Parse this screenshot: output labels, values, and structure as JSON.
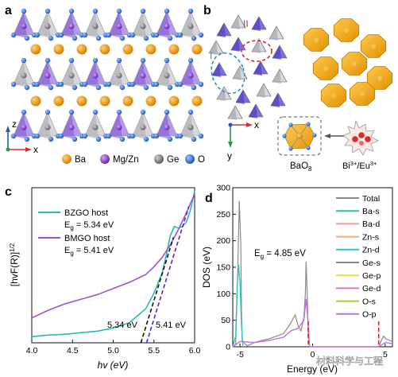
{
  "figure": {
    "panel_letters": [
      "a",
      "b",
      "c",
      "d"
    ],
    "panel_a": {
      "axes": {
        "z": "z",
        "x": "x"
      },
      "legend": [
        {
          "symbol": "ba-sphere",
          "label": "Ba",
          "color": "#f0a020"
        },
        {
          "symbol": "mgzn-sphere",
          "label": "Mg/Zn",
          "color": "#8a40d0"
        },
        {
          "symbol": "ge-sphere",
          "label": "Ge",
          "color": "#8a8a8a"
        },
        {
          "symbol": "o-sphere",
          "label": "O",
          "color": "#2a6fd6"
        }
      ]
    },
    "panel_b": {
      "sites": {
        "I": "I",
        "II": "II"
      },
      "axes": {
        "x": "x",
        "y": "y"
      },
      "polyhedron_label": "BaO",
      "polyhedron_sub": "8",
      "dopant_label": "Bi",
      "dopant_sup1": "3+",
      "dopant_mid": "/Eu",
      "dopant_sup2": "3+"
    },
    "watermark": "材料科学与工程"
  },
  "chart_data": [
    {
      "panel": "c",
      "type": "line",
      "xlabel": "hv (eV)",
      "ylabel": "[hvF(R)]",
      "ylabel_sup": "1/2",
      "xlim": [
        4.0,
        6.0
      ],
      "xticks": [
        "4.0",
        "4.5",
        "5.0",
        "5.5",
        "6.0"
      ],
      "colors": {
        "BZGO": "#2ab8b0",
        "BMGO": "#a050d8"
      },
      "legend": [
        {
          "name": "BZGO host",
          "eg_prefix": "E",
          "eg_sub": "g",
          "eg_value": " = 5.34 eV"
        },
        {
          "name": "BMGO host",
          "eg_prefix": "E",
          "eg_sub": "g",
          "eg_value": " = 5.41 eV"
        }
      ],
      "series": [
        {
          "name": "BZGO host",
          "x": [
            4.0,
            4.2,
            4.4,
            4.6,
            4.8,
            5.0,
            5.2,
            5.4,
            5.5,
            5.6,
            5.65,
            5.7,
            5.75,
            5.8,
            5.85,
            5.9,
            5.95,
            6.0
          ],
          "y": [
            0.04,
            0.05,
            0.055,
            0.065,
            0.075,
            0.095,
            0.13,
            0.22,
            0.32,
            0.45,
            0.56,
            0.69,
            0.75,
            0.74,
            0.75,
            0.78,
            0.86,
            0.98
          ]
        },
        {
          "name": "BMGO host",
          "x": [
            4.0,
            4.2,
            4.4,
            4.6,
            4.8,
            5.0,
            5.2,
            5.4,
            5.5,
            5.6,
            5.7,
            5.8,
            5.9,
            6.0
          ],
          "y": [
            0.16,
            0.21,
            0.25,
            0.28,
            0.31,
            0.35,
            0.39,
            0.44,
            0.49,
            0.55,
            0.63,
            0.73,
            0.84,
            0.96
          ]
        }
      ],
      "annotations": [
        {
          "text": "5.34 eV",
          "at_x": 5.34
        },
        {
          "text": "5.41 eV",
          "at_x": 5.41
        }
      ]
    },
    {
      "panel": "d",
      "type": "line",
      "xlabel": "Energy (eV)",
      "ylabel": "DOS (eV)",
      "ylim": [
        0,
        300
      ],
      "xlim": [
        -5.5,
        5.5
      ],
      "xticks": [
        -5,
        0,
        5
      ],
      "yticks": [
        0,
        50,
        100,
        150,
        200,
        250,
        300
      ],
      "gap_label": "E",
      "gap_sub": "g",
      "gap_value": " = 4.85 eV",
      "gap_edges": [
        -0.3,
        4.55
      ],
      "legend": [
        {
          "name": "Total",
          "color": "#8a8a8a"
        },
        {
          "name": "Ba-s",
          "color": "#2abcb0"
        },
        {
          "name": "Ba-d",
          "color": "#f0a090"
        },
        {
          "name": "Zn-s",
          "color": "#f0a880"
        },
        {
          "name": "Zn-d",
          "color": "#28c8c0"
        },
        {
          "name": "Ge-s",
          "color": "#888888"
        },
        {
          "name": "Ge-p",
          "color": "#e8e040"
        },
        {
          "name": "Ge-d",
          "color": "#e070e0"
        },
        {
          "name": "O-s",
          "color": "#a0d030"
        },
        {
          "name": "O-p",
          "color": "#c070e0"
        }
      ],
      "series": [
        {
          "name": "Total",
          "x": [
            -5.5,
            -5.3,
            -5.15,
            -5.05,
            -4.95,
            -4.9,
            -4.85,
            -4.5,
            -4,
            -3.5,
            -3,
            -2.5,
            -2,
            -1.5,
            -1.2,
            -1,
            -0.8,
            -0.6,
            -0.5,
            -0.45,
            -0.4,
            -0.35,
            -0.3,
            -0.2,
            4.55,
            4.7,
            4.9,
            5.1,
            5.5
          ],
          "y": [
            0,
            5,
            150,
            275,
            195,
            70,
            10,
            2,
            8,
            12,
            15,
            20,
            25,
            45,
            60,
            40,
            30,
            55,
            100,
            160,
            125,
            80,
            20,
            0,
            0,
            10,
            20,
            14,
            10
          ]
        },
        {
          "name": "Zn-d",
          "x": [
            -5.5,
            -5.3,
            -5.2,
            -5.1,
            -5.0,
            -4.9,
            -4.8
          ],
          "y": [
            0,
            20,
            110,
            155,
            120,
            40,
            0
          ]
        },
        {
          "name": "O-p",
          "x": [
            -5.5,
            -5,
            -4,
            -3,
            -2,
            -1.5,
            -1,
            -0.6,
            -0.45,
            -0.35,
            -0.2,
            4.55,
            5,
            5.5
          ],
          "y": [
            0,
            10,
            8,
            12,
            18,
            30,
            35,
            50,
            90,
            60,
            0,
            0,
            8,
            6
          ]
        }
      ]
    }
  ]
}
